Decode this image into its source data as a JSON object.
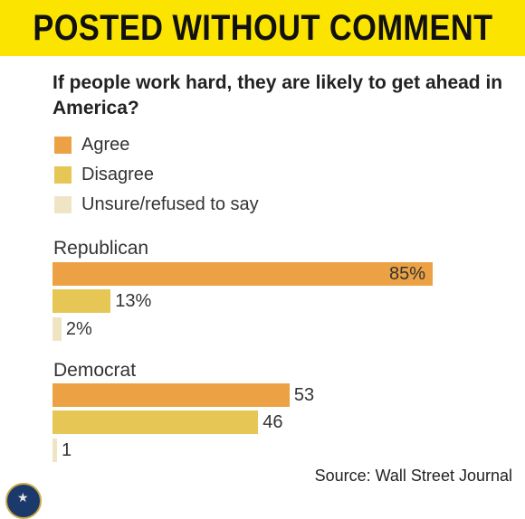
{
  "banner": {
    "title": "POSTED WITHOUT COMMENT"
  },
  "chart_data": {
    "type": "bar",
    "orientation": "horizontal",
    "title": "If people work hard, they are likely to get ahead in America?",
    "legend": [
      {
        "name": "Agree",
        "color": "#eca244"
      },
      {
        "name": "Disagree",
        "color": "#e6c655"
      },
      {
        "name": "Unsure/refused to say",
        "color": "#efe4c4"
      }
    ],
    "groups": [
      {
        "name": "Republican",
        "bars": [
          {
            "series": "Agree",
            "value": 85,
            "label": "85%"
          },
          {
            "series": "Disagree",
            "value": 13,
            "label": "13%"
          },
          {
            "series": "Unsure/refused to say",
            "value": 2,
            "label": "2%"
          }
        ]
      },
      {
        "name": "Democrat",
        "bars": [
          {
            "series": "Agree",
            "value": 53,
            "label": "53"
          },
          {
            "series": "Disagree",
            "value": 46,
            "label": "46"
          },
          {
            "series": "Unsure/refused to say",
            "value": 1,
            "label": "1"
          }
        ]
      }
    ],
    "xlim": [
      0,
      100
    ],
    "source": "Source: Wall Street Journal"
  },
  "logo": {
    "name": "seal-icon"
  }
}
